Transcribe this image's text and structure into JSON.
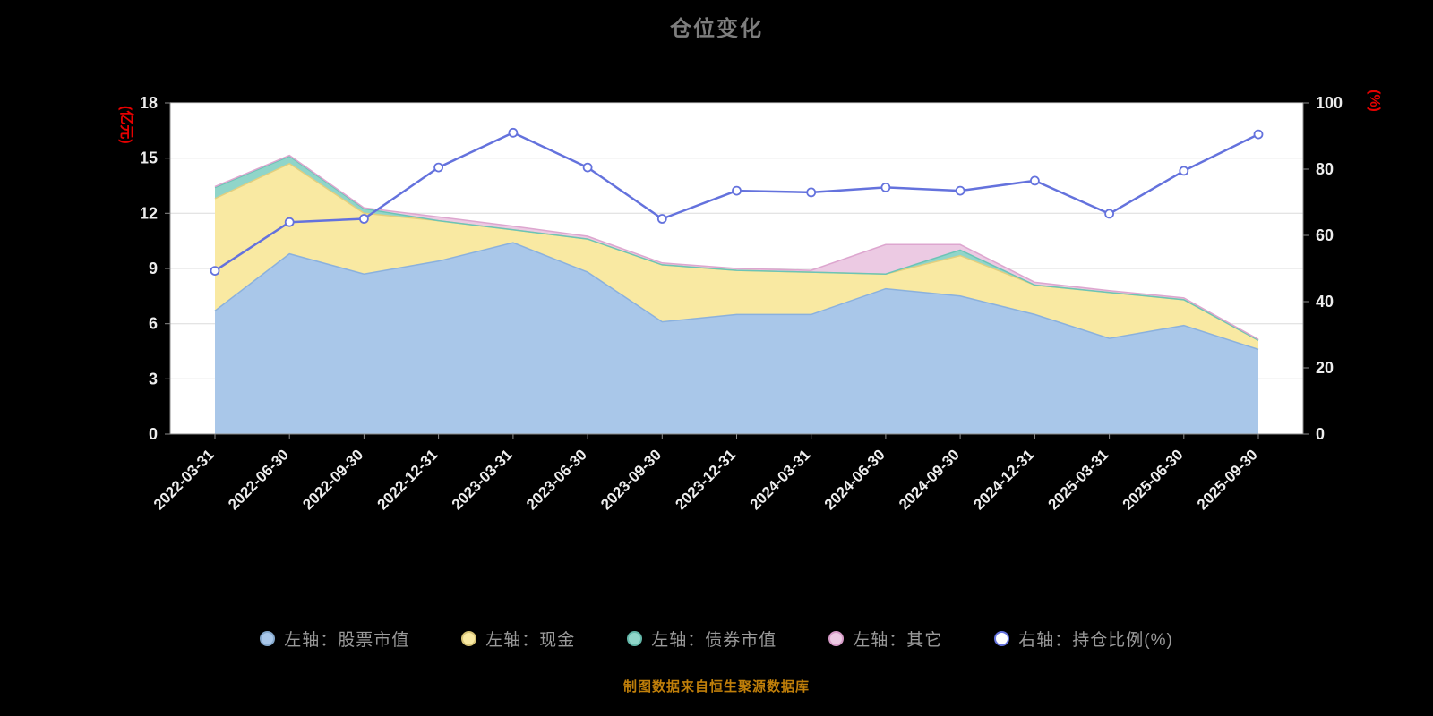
{
  "title": "仓位变化",
  "caption": "制图数据来自恒生聚源数据库",
  "colors": {
    "page_background": "#000000",
    "plot_background": "#ffffff",
    "grid": "#dcdcdc",
    "axis": "#8c8c8c",
    "tick_text": "#ededed",
    "title_text": "#7d7d7d",
    "axis_name_red": "#e60000",
    "legend_text": "#9a9a9a",
    "caption_text": "#c07f0a"
  },
  "legend": {
    "items": [
      {
        "label": "左轴：股票市值",
        "fill": "#a9c7e9",
        "edge": "#85a8cc"
      },
      {
        "label": "左轴：现金",
        "fill": "#f9e9a2",
        "edge": "#d8c476"
      },
      {
        "label": "左轴：债券市值",
        "fill": "#90d5c9",
        "edge": "#64b8aa"
      },
      {
        "label": "左轴：其它",
        "fill": "#eccae3",
        "edge": "#d79cc8"
      },
      {
        "label": "右轴：持仓比例(%)",
        "fill": "#ffffff",
        "edge": "#6472dd"
      }
    ]
  },
  "chart_data": {
    "type": "area",
    "stacked": true,
    "title": "仓位变化",
    "grid": true,
    "legend_position": "bottom",
    "categories": [
      "2022-03-31",
      "2022-06-30",
      "2022-09-30",
      "2022-12-31",
      "2023-03-31",
      "2023-06-30",
      "2023-09-30",
      "2023-12-31",
      "2024-03-31",
      "2024-06-30",
      "2024-09-30",
      "2024-12-31",
      "2025-03-31",
      "2025-06-30",
      "2025-09-30"
    ],
    "left_axis": {
      "label": "(亿元)",
      "lim": [
        0,
        18
      ],
      "ticks": [
        0,
        3,
        6,
        9,
        12,
        15,
        18
      ]
    },
    "right_axis": {
      "label": "(%)",
      "lim": [
        0,
        100
      ],
      "ticks": [
        0,
        20,
        40,
        60,
        80,
        100
      ]
    },
    "series": [
      {
        "name": "左轴：股票市值",
        "kind": "area",
        "axis": "left",
        "fill": "#a9c7e9",
        "edge": "#8bb1dd",
        "values": [
          6.7,
          9.8,
          8.7,
          9.4,
          10.4,
          8.8,
          6.1,
          6.5,
          6.5,
          7.9,
          7.5,
          6.5,
          5.2,
          5.9,
          4.6
        ]
      },
      {
        "name": "左轴：现金",
        "kind": "area",
        "axis": "left",
        "fill": "#f9e9a2",
        "edge": "#e3cf7e",
        "values": [
          6.1,
          4.9,
          3.3,
          2.2,
          0.7,
          1.8,
          3.1,
          2.4,
          2.3,
          0.8,
          2.2,
          1.6,
          2.5,
          1.4,
          0.5
        ]
      },
      {
        "name": "左轴：债券市值",
        "kind": "area",
        "axis": "left",
        "fill": "#90d5c9",
        "edge": "#6cc4b6",
        "values": [
          0.6,
          0.4,
          0.25,
          0,
          0,
          0,
          0,
          0,
          0,
          0,
          0.3,
          0,
          0,
          0,
          0
        ]
      },
      {
        "name": "左轴：其它",
        "kind": "area",
        "axis": "left",
        "fill": "#eccae3",
        "edge": "#dda6cf",
        "values": [
          0.05,
          0.05,
          0.05,
          0.2,
          0.2,
          0.15,
          0.1,
          0.1,
          0.1,
          1.6,
          0.3,
          0.15,
          0.1,
          0.1,
          0.05
        ]
      },
      {
        "name": "右轴：持仓比例(%)",
        "kind": "line",
        "axis": "right",
        "color": "#6472dd",
        "marker_fill": "#ffffff",
        "values": [
          49.3,
          64,
          65,
          80.5,
          91,
          80.5,
          65,
          73.5,
          73,
          74.5,
          73.5,
          76.5,
          66.5,
          79.5,
          90.5
        ]
      }
    ]
  }
}
